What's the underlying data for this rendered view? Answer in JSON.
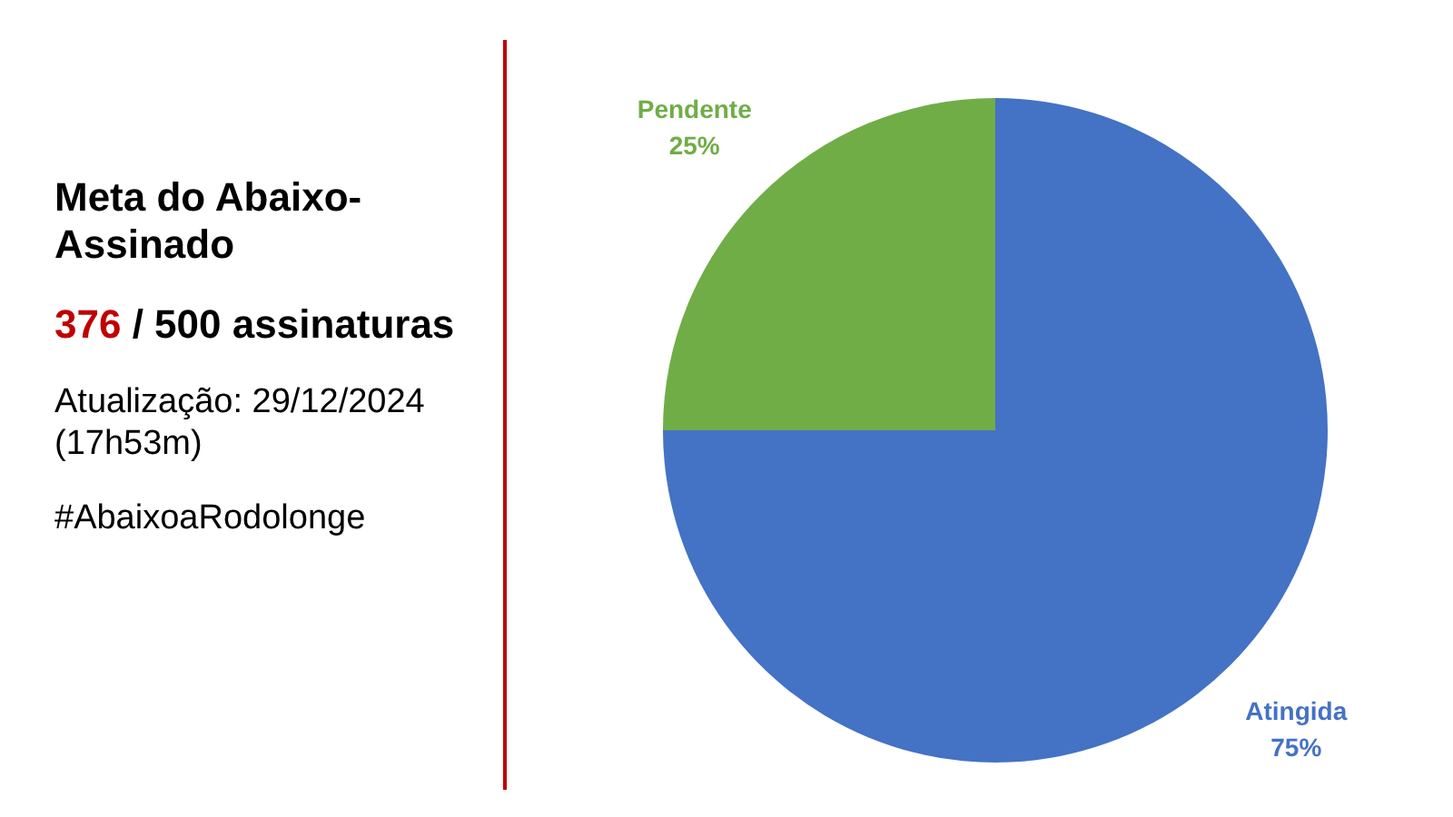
{
  "chart_data": {
    "type": "pie",
    "title": "Meta do Abaixo-Assinado",
    "annotations": [
      "376 / 500 assinaturas",
      "Atualização: 29/12/2024 (17h53m)",
      "#AbaixoaRodolonge"
    ],
    "categories": [
      "Atingida",
      "Pendente"
    ],
    "values": [
      75,
      25
    ],
    "colors": [
      "#4472c4",
      "#70ad47"
    ],
    "value_labels": [
      "75%",
      "25%"
    ]
  }
}
